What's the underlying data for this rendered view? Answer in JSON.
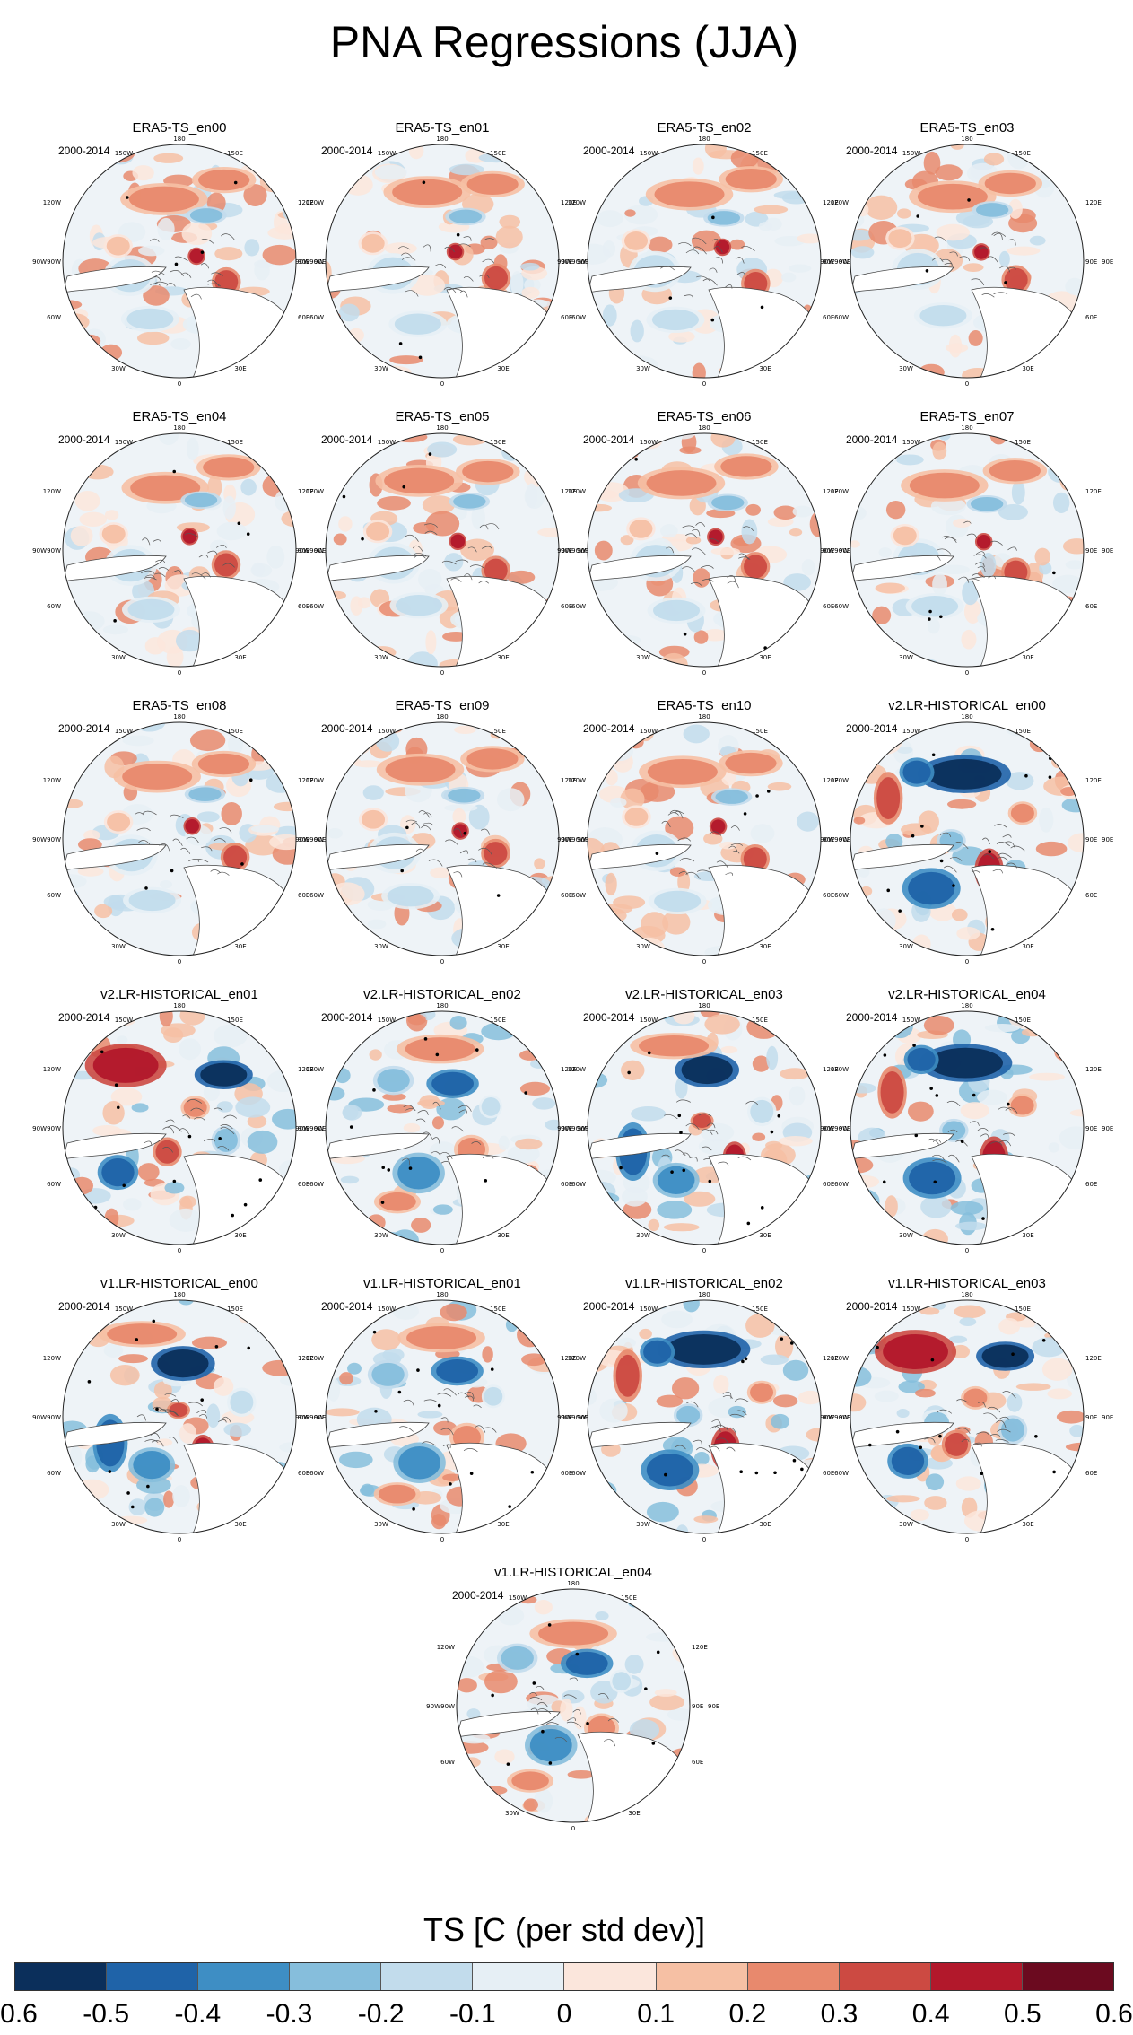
{
  "title": "PNA Regressions (JJA)",
  "period_label": "2000-2014",
  "map_labels": {
    "top": "180",
    "top_left": "150W",
    "top_right": "150E",
    "upper_left": "120W",
    "upper_right": "120E",
    "left_a": "90W",
    "left_b": "90W",
    "right_a": "90E",
    "right_b": "90E",
    "lower_left": "60W",
    "lower_right": "60E",
    "bottom_left": "30W",
    "bottom_right": "30E",
    "bottom": "0"
  },
  "panels": [
    {
      "title": "ERA5-TS_en00",
      "style": "era5"
    },
    {
      "title": "ERA5-TS_en01",
      "style": "era5"
    },
    {
      "title": "ERA5-TS_en02",
      "style": "era5"
    },
    {
      "title": "ERA5-TS_en03",
      "style": "era5"
    },
    {
      "title": "ERA5-TS_en04",
      "style": "era5"
    },
    {
      "title": "ERA5-TS_en05",
      "style": "era5"
    },
    {
      "title": "ERA5-TS_en06",
      "style": "era5"
    },
    {
      "title": "ERA5-TS_en07",
      "style": "era5"
    },
    {
      "title": "ERA5-TS_en08",
      "style": "era5"
    },
    {
      "title": "ERA5-TS_en09",
      "style": "era5"
    },
    {
      "title": "ERA5-TS_en10",
      "style": "era5"
    },
    {
      "title": "v2.LR-HISTORICAL_en00",
      "style": "model_a"
    },
    {
      "title": "v2.LR-HISTORICAL_en01",
      "style": "model_b"
    },
    {
      "title": "v2.LR-HISTORICAL_en02",
      "style": "model_c"
    },
    {
      "title": "v2.LR-HISTORICAL_en03",
      "style": "model_d"
    },
    {
      "title": "v2.LR-HISTORICAL_en04",
      "style": "model_a"
    },
    {
      "title": "v1.LR-HISTORICAL_en00",
      "style": "model_d"
    },
    {
      "title": "v1.LR-HISTORICAL_en01",
      "style": "model_c"
    },
    {
      "title": "v1.LR-HISTORICAL_en02",
      "style": "model_a"
    },
    {
      "title": "v1.LR-HISTORICAL_en03",
      "style": "model_b"
    },
    {
      "title": "v1.LR-HISTORICAL_en04",
      "style": "model_c"
    }
  ],
  "colorbar": {
    "title": "TS [C (per std dev)]",
    "colors": [
      "#0b2f5b",
      "#1f63a8",
      "#3e8ec4",
      "#86bedc",
      "#c2dcec",
      "#e6eff5",
      "#fbe6dc",
      "#f6c0a4",
      "#e8896d",
      "#cc4a42",
      "#b2182b",
      "#6b0a1f"
    ],
    "tick_labels": [
      "-0.6",
      "-0.5",
      "-0.4",
      "-0.3",
      "-0.2",
      "-0.1",
      "0",
      "0.1",
      "0.2",
      "0.3",
      "0.4",
      "0.5",
      "0.6"
    ]
  }
}
